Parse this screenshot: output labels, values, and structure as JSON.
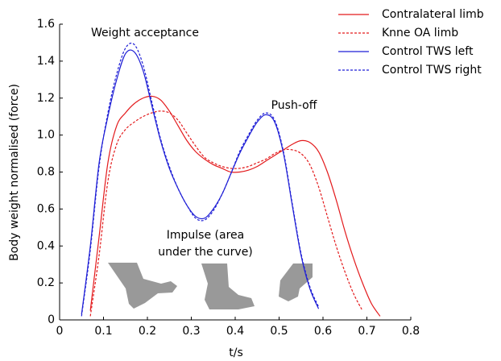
{
  "chart_data": {
    "type": "line",
    "xlabel": "t/s",
    "ylabel": "Body weight normalised (force)",
    "xlim": [
      0,
      0.8
    ],
    "ylim": [
      0,
      1.6
    ],
    "xticks": [
      0,
      0.1,
      0.2,
      0.3,
      0.4,
      0.5,
      0.6,
      0.7,
      0.8
    ],
    "yticks": [
      0,
      0.2,
      0.4,
      0.6,
      0.8,
      {
        "value": 1,
        "label": "1.0"
      },
      1.2,
      1.4,
      1.6
    ],
    "legend": "upper right",
    "annotations": [
      {
        "text": "Weight acceptance"
      },
      {
        "text": "Push-off"
      },
      {
        "text": [
          "Impulse (area",
          "under the curve)"
        ]
      }
    ],
    "x": [
      0.05,
      0.07,
      0.09,
      0.11,
      0.13,
      0.15,
      0.17,
      0.19,
      0.21,
      0.23,
      0.25,
      0.27,
      0.29,
      0.31,
      0.33,
      0.35,
      0.37,
      0.39,
      0.41,
      0.43,
      0.45,
      0.47,
      0.49,
      0.51,
      0.53,
      0.55,
      0.57,
      0.59,
      0.61,
      0.63,
      0.65,
      0.67,
      0.69,
      0.71,
      0.73
    ],
    "series": [
      {
        "name": "Contralateral limb",
        "color": "#e31a1c",
        "linestyle": "solid",
        "values": [
          null,
          0.05,
          0.45,
          0.85,
          1.05,
          1.12,
          1.17,
          1.2,
          1.21,
          1.19,
          1.13,
          1.05,
          0.97,
          0.91,
          0.87,
          0.84,
          0.82,
          0.8,
          0.8,
          0.81,
          0.83,
          0.86,
          0.89,
          0.92,
          0.95,
          0.97,
          0.96,
          0.91,
          0.8,
          0.65,
          0.48,
          0.33,
          0.2,
          0.09,
          0.02
        ]
      },
      {
        "name": "Knne OA limb",
        "color": "#e31a1c",
        "linestyle": "dashed",
        "values": [
          null,
          0.02,
          0.35,
          0.75,
          0.95,
          1.03,
          1.07,
          1.1,
          1.12,
          1.13,
          1.12,
          1.08,
          1.01,
          0.94,
          0.88,
          0.85,
          0.83,
          0.82,
          0.82,
          0.83,
          0.85,
          0.87,
          0.9,
          0.92,
          0.92,
          0.9,
          0.84,
          0.72,
          0.56,
          0.4,
          0.26,
          0.14,
          0.05,
          null,
          null
        ]
      },
      {
        "name": "Control TWS left",
        "color": "#1f1fd6",
        "linestyle": "solid",
        "values": [
          0.03,
          0.4,
          0.85,
          1.1,
          1.3,
          1.44,
          1.45,
          1.35,
          1.16,
          0.97,
          0.82,
          0.71,
          0.62,
          0.56,
          0.55,
          0.6,
          0.68,
          0.79,
          0.9,
          0.99,
          1.07,
          1.11,
          1.07,
          0.9,
          0.62,
          0.35,
          0.17,
          0.06,
          null,
          null,
          null,
          null,
          null,
          null,
          null
        ]
      },
      {
        "name": "Control TWS right",
        "color": "#1f1fd6",
        "linestyle": "dashed",
        "values": [
          0.02,
          0.38,
          0.83,
          1.12,
          1.33,
          1.47,
          1.49,
          1.38,
          1.18,
          0.98,
          0.83,
          0.71,
          0.62,
          0.55,
          0.54,
          0.59,
          0.68,
          0.79,
          0.91,
          1.0,
          1.08,
          1.12,
          1.08,
          0.91,
          0.63,
          0.36,
          0.18,
          0.07,
          null,
          null,
          null,
          null,
          null,
          null,
          null
        ]
      }
    ]
  }
}
